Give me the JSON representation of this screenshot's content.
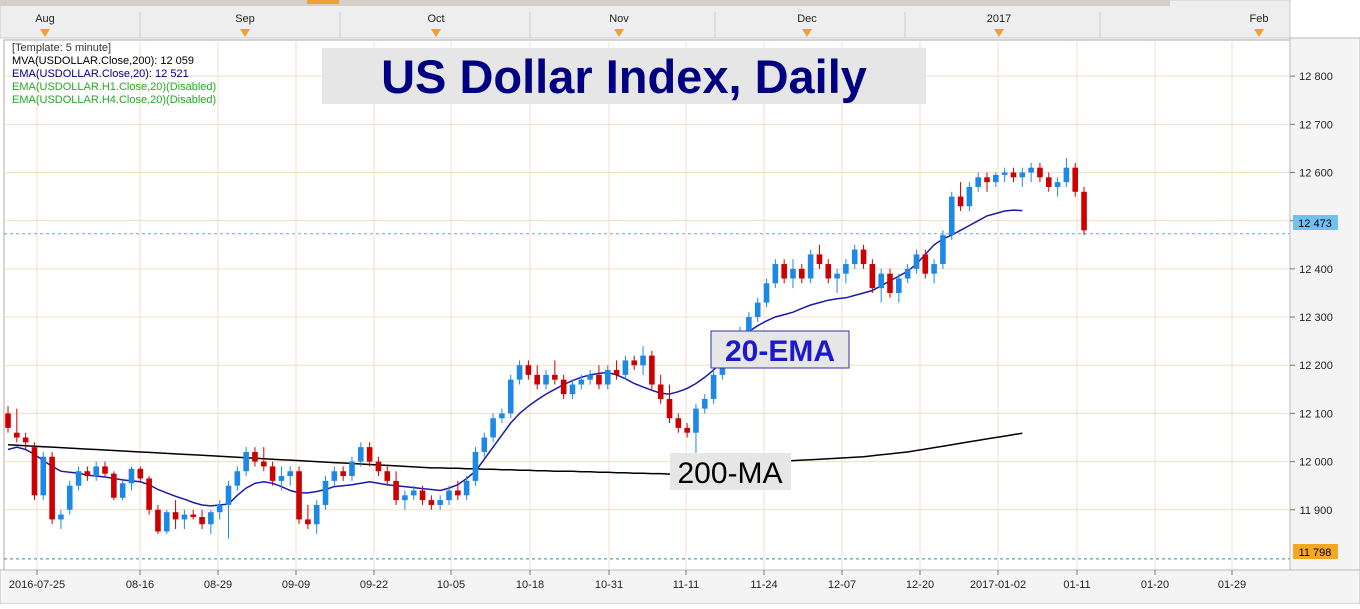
{
  "legend": {
    "template": "[Template: 5 minute]",
    "mva200": "MVA(USDOLLAR.Close,200): 12 059",
    "ema20": "EMA(USDOLLAR.Close,20): 12 521",
    "ema_h1": "EMA(USDOLLAR.H1.Close,20)(Disabled)",
    "ema_h4": "EMA(USDOLLAR.H4.Close,20)(Disabled)"
  },
  "title": "US Dollar Index, Daily",
  "annotations": {
    "ema_label": "20-EMA",
    "ma_label": "200-MA"
  },
  "colors": {
    "up": "#1e88e5",
    "down": "#cc0000",
    "ema": "#1a1aaa",
    "ma": "#000000",
    "grid": "#f3dfc4",
    "title_bg": "#e6e6e6",
    "title_text": "#000080",
    "month_marker": "#f0a030",
    "last_price_bg": "#6fc2f0",
    "low_price_bg": "#f5a623",
    "legend_green": "#22aa22",
    "legend_blue": "#000080"
  },
  "top_axis": {
    "months": [
      "Aug",
      "Sep",
      "Oct",
      "Nov",
      "Dec",
      "2017",
      "Feb"
    ]
  },
  "chart_data": {
    "type": "candlestick",
    "title": "US Dollar Index, Daily",
    "ylim": [
      11775,
      12875
    ],
    "y_ticks": [
      11900,
      12000,
      12100,
      12200,
      12300,
      12400,
      12500,
      12600,
      12700,
      12800
    ],
    "y_tick_labels": [
      "11 900",
      "12 000",
      "12 100",
      "12 200",
      "12 300",
      "12 400",
      "12 500",
      "12 600",
      "12 700",
      "12 800"
    ],
    "x_tick_labels": [
      "2016-07-25",
      "08-16",
      "08-29",
      "09-09",
      "09-22",
      "10-05",
      "10-18",
      "10-31",
      "11-11",
      "11-24",
      "12-07",
      "12-20",
      "2017-01-02",
      "01-11",
      "01-20",
      "01-29"
    ],
    "grid": true,
    "last_price": 12473,
    "last_price_label": "12 473",
    "low_line": 11798,
    "low_line_label": "11 798",
    "candles": [
      [
        12100,
        12115,
        12060,
        12070
      ],
      [
        12060,
        12110,
        12040,
        12050
      ],
      [
        12050,
        12060,
        12025,
        12040
      ],
      [
        12030,
        12040,
        11920,
        11930
      ],
      [
        11930,
        12020,
        11920,
        12010
      ],
      [
        12010,
        12020,
        11870,
        11880
      ],
      [
        11880,
        11900,
        11860,
        11890
      ],
      [
        11900,
        11960,
        11890,
        11950
      ],
      [
        11950,
        11990,
        11940,
        11980
      ],
      [
        11980,
        11990,
        11960,
        11970
      ],
      [
        11970,
        12000,
        11960,
        11990
      ],
      [
        11990,
        12000,
        11970,
        11975
      ],
      [
        11975,
        11980,
        11920,
        11925
      ],
      [
        11925,
        11960,
        11920,
        11955
      ],
      [
        11955,
        11990,
        11940,
        11985
      ],
      [
        11985,
        11990,
        11960,
        11965
      ],
      [
        11965,
        11970,
        11890,
        11900
      ],
      [
        11900,
        11910,
        11850,
        11855
      ],
      [
        11855,
        11900,
        11850,
        11895
      ],
      [
        11895,
        11920,
        11860,
        11880
      ],
      [
        11880,
        11900,
        11860,
        11890
      ],
      [
        11890,
        11900,
        11880,
        11885
      ],
      [
        11885,
        11900,
        11860,
        11870
      ],
      [
        11870,
        11900,
        11850,
        11895
      ],
      [
        11895,
        11920,
        11880,
        11910
      ],
      [
        11910,
        11960,
        11840,
        11950
      ],
      [
        11950,
        11990,
        11940,
        11980
      ],
      [
        11980,
        12030,
        11970,
        12020
      ],
      [
        12020,
        12030,
        11990,
        12000
      ],
      [
        12000,
        12030,
        11980,
        11990
      ],
      [
        11990,
        12000,
        11950,
        11960
      ],
      [
        11960,
        11990,
        11940,
        11970
      ],
      [
        11970,
        11990,
        11950,
        11980
      ],
      [
        11980,
        11990,
        11870,
        11880
      ],
      [
        11880,
        11910,
        11860,
        11870
      ],
      [
        11870,
        11920,
        11850,
        11910
      ],
      [
        11910,
        11970,
        11900,
        11960
      ],
      [
        11960,
        11990,
        11950,
        11980
      ],
      [
        11980,
        11990,
        11960,
        11970
      ],
      [
        11970,
        12010,
        11960,
        12000
      ],
      [
        12000,
        12040,
        11990,
        12030
      ],
      [
        12030,
        12040,
        11990,
        12000
      ],
      [
        12000,
        12010,
        11970,
        11980
      ],
      [
        11980,
        11990,
        11950,
        11960
      ],
      [
        11960,
        11980,
        11910,
        11920
      ],
      [
        11920,
        11940,
        11900,
        11930
      ],
      [
        11930,
        11950,
        11920,
        11940
      ],
      [
        11940,
        11950,
        11910,
        11920
      ],
      [
        11920,
        11930,
        11900,
        11910
      ],
      [
        11910,
        11930,
        11900,
        11920
      ],
      [
        11920,
        11950,
        11910,
        11940
      ],
      [
        11940,
        11960,
        11920,
        11930
      ],
      [
        11930,
        11970,
        11920,
        11960
      ],
      [
        11960,
        12030,
        11950,
        12020
      ],
      [
        12020,
        12060,
        12010,
        12050
      ],
      [
        12050,
        12100,
        12040,
        12090
      ],
      [
        12090,
        12110,
        12080,
        12100
      ],
      [
        12100,
        12180,
        12090,
        12170
      ],
      [
        12170,
        12210,
        12160,
        12200
      ],
      [
        12200,
        12210,
        12170,
        12180
      ],
      [
        12180,
        12200,
        12150,
        12160
      ],
      [
        12160,
        12190,
        12150,
        12180
      ],
      [
        12180,
        12210,
        12160,
        12170
      ],
      [
        12170,
        12180,
        12130,
        12140
      ],
      [
        12140,
        12170,
        12130,
        12160
      ],
      [
        12160,
        12180,
        12150,
        12170
      ],
      [
        12170,
        12190,
        12160,
        12180
      ],
      [
        12180,
        12200,
        12150,
        12160
      ],
      [
        12160,
        12200,
        12150,
        12190
      ],
      [
        12190,
        12210,
        12170,
        12180
      ],
      [
        12180,
        12220,
        12170,
        12210
      ],
      [
        12210,
        12220,
        12190,
        12200
      ],
      [
        12200,
        12240,
        12180,
        12220
      ],
      [
        12220,
        12230,
        12150,
        12160
      ],
      [
        12160,
        12180,
        12120,
        12130
      ],
      [
        12130,
        12160,
        12080,
        12090
      ],
      [
        12090,
        12100,
        12060,
        12070
      ],
      [
        12070,
        12080,
        12050,
        12060
      ],
      [
        12060,
        12120,
        12010,
        12110
      ],
      [
        12110,
        12140,
        12100,
        12130
      ],
      [
        12130,
        12190,
        12120,
        12180
      ],
      [
        12180,
        12220,
        12170,
        12210
      ],
      [
        12210,
        12270,
        12200,
        12260
      ],
      [
        12260,
        12280,
        12240,
        12270
      ],
      [
        12270,
        12310,
        12260,
        12300
      ],
      [
        12300,
        12340,
        12290,
        12330
      ],
      [
        12330,
        12380,
        12320,
        12370
      ],
      [
        12370,
        12420,
        12360,
        12410
      ],
      [
        12410,
        12420,
        12370,
        12380
      ],
      [
        12380,
        12420,
        12360,
        12400
      ],
      [
        12400,
        12410,
        12370,
        12380
      ],
      [
        12380,
        12440,
        12370,
        12430
      ],
      [
        12430,
        12450,
        12400,
        12410
      ],
      [
        12410,
        12420,
        12370,
        12380
      ],
      [
        12380,
        12400,
        12350,
        12390
      ],
      [
        12390,
        12420,
        12370,
        12410
      ],
      [
        12410,
        12450,
        12400,
        12440
      ],
      [
        12440,
        12450,
        12400,
        12410
      ],
      [
        12410,
        12420,
        12350,
        12360
      ],
      [
        12360,
        12400,
        12330,
        12390
      ],
      [
        12390,
        12400,
        12340,
        12350
      ],
      [
        12350,
        12390,
        12330,
        12380
      ],
      [
        12380,
        12410,
        12370,
        12400
      ],
      [
        12400,
        12440,
        12390,
        12430
      ],
      [
        12430,
        12440,
        12380,
        12390
      ],
      [
        12390,
        12420,
        12370,
        12410
      ],
      [
        12410,
        12480,
        12400,
        12470
      ],
      [
        12470,
        12560,
        12460,
        12550
      ],
      [
        12550,
        12580,
        12520,
        12530
      ],
      [
        12530,
        12580,
        12520,
        12570
      ],
      [
        12570,
        12600,
        12560,
        12590
      ],
      [
        12590,
        12600,
        12560,
        12580
      ],
      [
        12580,
        12600,
        12570,
        12595
      ],
      [
        12595,
        12610,
        12580,
        12600
      ],
      [
        12600,
        12610,
        12580,
        12590
      ],
      [
        12590,
        12610,
        12570,
        12600
      ],
      [
        12600,
        12620,
        12580,
        12610
      ],
      [
        12610,
        12620,
        12580,
        12590
      ],
      [
        12590,
        12600,
        12560,
        12570
      ],
      [
        12570,
        12590,
        12550,
        12580
      ],
      [
        12580,
        12630,
        12570,
        12610
      ],
      [
        12610,
        12620,
        12550,
        12560
      ],
      [
        12560,
        12570,
        12470,
        12480
      ]
    ],
    "ema20": [
      12025,
      12030,
      12025,
      12015,
      12002,
      11990,
      11980,
      11978,
      11976,
      11972,
      11970,
      11968,
      11965,
      11962,
      11960,
      11958,
      11952,
      11942,
      11935,
      11928,
      11922,
      11915,
      11910,
      11908,
      11910,
      11912,
      11930,
      11945,
      11955,
      11958,
      11955,
      11948,
      11940,
      11935,
      11935,
      11938,
      11942,
      11948,
      11950,
      11952,
      11955,
      11958,
      11955,
      11952,
      11950,
      11948,
      11946,
      11944,
      11942,
      11940,
      11945,
      11952,
      11965,
      11980,
      12005,
      12030,
      12055,
      12080,
      12100,
      12115,
      12128,
      12140,
      12150,
      12160,
      12168,
      12175,
      12180,
      12183,
      12185,
      12180,
      12172,
      12162,
      12155,
      12148,
      12142,
      12140,
      12145,
      12152,
      12162,
      12175,
      12190,
      12210,
      12235,
      12255,
      12270,
      12282,
      12292,
      12300,
      12305,
      12310,
      12318,
      12325,
      12330,
      12335,
      12338,
      12340,
      12345,
      12350,
      12355,
      12365,
      12375,
      12385,
      12395,
      12410,
      12430,
      12450,
      12462,
      12470,
      12480,
      12490,
      12500,
      12510,
      12515,
      12520,
      12522,
      12521
    ],
    "mva200": [
      12035,
      12034,
      12033,
      12032,
      12031,
      12030,
      12029,
      12028,
      12027,
      12026,
      12025,
      12024,
      12023,
      12022,
      12021,
      12020,
      12019,
      12018,
      12017,
      12016,
      12015,
      12014,
      12013,
      12012,
      12011,
      12010,
      12009,
      12008,
      12007,
      12006,
      12005,
      12004,
      12003,
      12002,
      12001,
      12000,
      11999,
      11998,
      11997,
      11996,
      11995,
      11994,
      11993,
      11992,
      11991,
      11990,
      11989,
      11988,
      11987,
      11987,
      11986,
      11986,
      11985,
      11985,
      11984,
      11984,
      11983,
      11983,
      11982,
      11982,
      11981,
      11981,
      11980,
      11980,
      11980,
      11979,
      11979,
      11978,
      11978,
      11977,
      11977,
      11976,
      11976,
      11975,
      11975,
      11974,
      11974,
      11974,
      11975,
      11977,
      11980,
      11984,
      11988,
      11992,
      11995,
      11997,
      11999,
      12000,
      12001,
      12002,
      12003,
      12004,
      12005,
      12006,
      12007,
      12008,
      12009,
      12010,
      12012,
      12014,
      12016,
      12018,
      12020,
      12023,
      12026,
      12029,
      12032,
      12035,
      12038,
      12041,
      12044,
      12047,
      12050,
      12053,
      12056,
      12059
    ]
  }
}
